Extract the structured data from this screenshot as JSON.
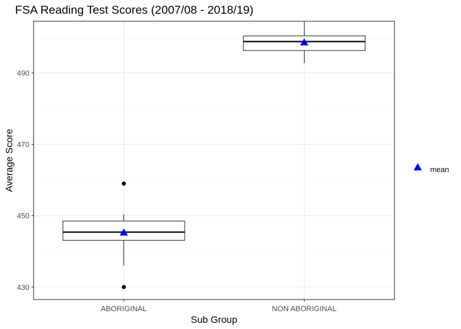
{
  "chart_data": {
    "type": "box",
    "title": "FSA Reading Test Scores (2007/08 - 2018/19)",
    "xlabel": "Sub Group",
    "ylabel": "Average Score",
    "categories": [
      "ABORIGINAL",
      "NON ABORIGINAL"
    ],
    "ylim": [
      426.5,
      504.5
    ],
    "yticks": [
      430,
      450,
      470,
      490
    ],
    "ytick_labels": [
      "430",
      "450",
      "470",
      "490"
    ],
    "boxes": [
      {
        "category": "ABORIGINAL",
        "whisker_low": 436,
        "q1": 443.1,
        "median": 445.4,
        "q3": 448.5,
        "whisker_high": 450.4,
        "outliers": [
          430,
          459
        ],
        "mean": 445.3
      },
      {
        "category": "NON ABORIGINAL",
        "whisker_low": 492.8,
        "q1": 496.3,
        "median": 498.8,
        "q3": 500.4,
        "whisker_high": 504.5,
        "outliers": [],
        "mean": 498.6
      }
    ],
    "mean_marker": {
      "shape": "triangle",
      "color": "#0000FF"
    },
    "legend": {
      "position": "right",
      "entries": [
        "mean"
      ]
    },
    "grid": true
  }
}
